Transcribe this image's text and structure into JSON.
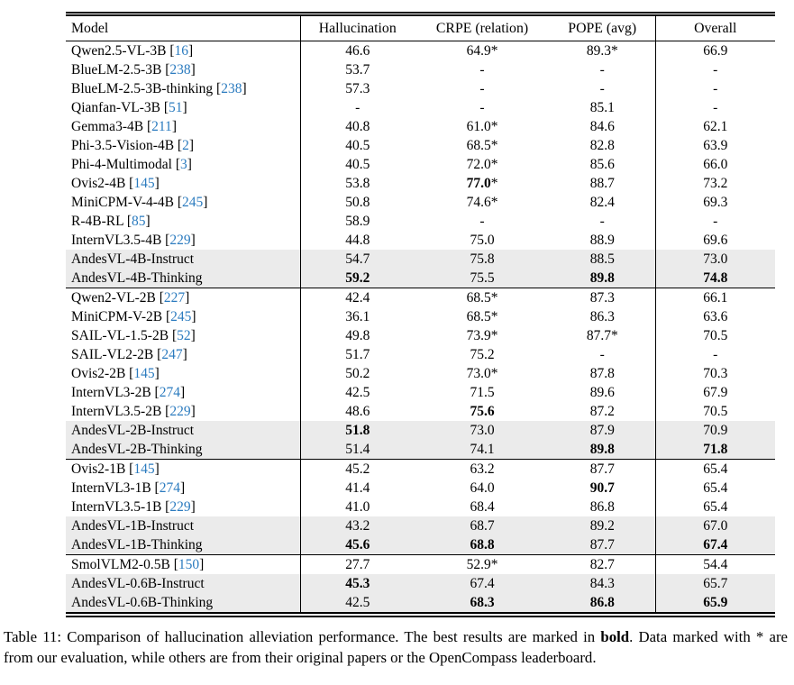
{
  "colors": {
    "citation_blue": "#2b7bbf",
    "highlight_row": "#ebebeb"
  },
  "table": {
    "columns": [
      {
        "key": "model",
        "label": "Model"
      },
      {
        "key": "hallucination",
        "label": "Hallucination"
      },
      {
        "key": "crpe",
        "label": "CRPE (relation)"
      },
      {
        "key": "pope",
        "label": "POPE (avg)"
      },
      {
        "key": "overall",
        "label": "Overall"
      }
    ],
    "groups": [
      {
        "rows": [
          {
            "model": "Qwen2.5-VL-3B",
            "cite": "16",
            "highlight": false,
            "cells": [
              {
                "v": "46.6"
              },
              {
                "v": "64.9",
                "star": true
              },
              {
                "v": "89.3",
                "star": true
              },
              {
                "v": "66.9"
              }
            ]
          },
          {
            "model": "BlueLM-2.5-3B",
            "cite": "238",
            "highlight": false,
            "cells": [
              {
                "v": "53.7"
              },
              {
                "v": "-"
              },
              {
                "v": "-"
              },
              {
                "v": "-"
              }
            ]
          },
          {
            "model": "BlueLM-2.5-3B-thinking",
            "cite": "238",
            "highlight": false,
            "cells": [
              {
                "v": "57.3"
              },
              {
                "v": "-"
              },
              {
                "v": "-"
              },
              {
                "v": "-"
              }
            ]
          },
          {
            "model": "Qianfan-VL-3B",
            "cite": "51",
            "highlight": false,
            "cells": [
              {
                "v": "-"
              },
              {
                "v": "-"
              },
              {
                "v": "85.1"
              },
              {
                "v": "-"
              }
            ]
          },
          {
            "model": "Gemma3-4B",
            "cite": "211",
            "highlight": false,
            "cells": [
              {
                "v": "40.8"
              },
              {
                "v": "61.0",
                "star": true
              },
              {
                "v": "84.6"
              },
              {
                "v": "62.1"
              }
            ]
          },
          {
            "model": "Phi-3.5-Vision-4B",
            "cite": "2",
            "highlight": false,
            "cells": [
              {
                "v": "40.5"
              },
              {
                "v": "68.5",
                "star": true
              },
              {
                "v": "82.8"
              },
              {
                "v": "63.9"
              }
            ]
          },
          {
            "model": "Phi-4-Multimodal",
            "cite": "3",
            "highlight": false,
            "cells": [
              {
                "v": "40.5"
              },
              {
                "v": "72.0",
                "star": true
              },
              {
                "v": "85.6"
              },
              {
                "v": "66.0"
              }
            ]
          },
          {
            "model": "Ovis2-4B",
            "cite": "145",
            "highlight": false,
            "cells": [
              {
                "v": "53.8"
              },
              {
                "v": "77.0",
                "star": true,
                "bold": true
              },
              {
                "v": "88.7"
              },
              {
                "v": "73.2"
              }
            ]
          },
          {
            "model": "MiniCPM-V-4-4B",
            "cite": "245",
            "highlight": false,
            "cells": [
              {
                "v": "50.8"
              },
              {
                "v": "74.6",
                "star": true
              },
              {
                "v": "82.4"
              },
              {
                "v": "69.3"
              }
            ]
          },
          {
            "model": "R-4B-RL",
            "cite": "85",
            "highlight": false,
            "cells": [
              {
                "v": "58.9"
              },
              {
                "v": "-"
              },
              {
                "v": "-"
              },
              {
                "v": "-"
              }
            ]
          },
          {
            "model": "InternVL3.5-4B",
            "cite": "229",
            "highlight": false,
            "cells": [
              {
                "v": "44.8"
              },
              {
                "v": "75.0"
              },
              {
                "v": "88.9"
              },
              {
                "v": "69.6"
              }
            ]
          },
          {
            "model": "AndesVL-4B-Instruct",
            "cite": null,
            "highlight": true,
            "cells": [
              {
                "v": "54.7"
              },
              {
                "v": "75.8"
              },
              {
                "v": "88.5"
              },
              {
                "v": "73.0"
              }
            ]
          },
          {
            "model": "AndesVL-4B-Thinking",
            "cite": null,
            "highlight": true,
            "cells": [
              {
                "v": "59.2",
                "bold": true
              },
              {
                "v": "75.5"
              },
              {
                "v": "89.8",
                "bold": true
              },
              {
                "v": "74.8",
                "bold": true
              }
            ]
          }
        ]
      },
      {
        "rows": [
          {
            "model": "Qwen2-VL-2B",
            "cite": "227",
            "highlight": false,
            "cells": [
              {
                "v": "42.4"
              },
              {
                "v": "68.5",
                "star": true
              },
              {
                "v": "87.3"
              },
              {
                "v": "66.1"
              }
            ]
          },
          {
            "model": "MiniCPM-V-2B",
            "cite": "245",
            "highlight": false,
            "cells": [
              {
                "v": "36.1"
              },
              {
                "v": "68.5",
                "star": true
              },
              {
                "v": "86.3"
              },
              {
                "v": "63.6"
              }
            ]
          },
          {
            "model": "SAIL-VL-1.5-2B",
            "cite": "52",
            "highlight": false,
            "cells": [
              {
                "v": "49.8"
              },
              {
                "v": "73.9",
                "star": true
              },
              {
                "v": "87.7",
                "star": true
              },
              {
                "v": "70.5"
              }
            ]
          },
          {
            "model": "SAIL-VL2-2B",
            "cite": "247",
            "highlight": false,
            "cells": [
              {
                "v": "51.7"
              },
              {
                "v": "75.2"
              },
              {
                "v": "-"
              },
              {
                "v": "-"
              }
            ]
          },
          {
            "model": "Ovis2-2B",
            "cite": "145",
            "highlight": false,
            "cells": [
              {
                "v": "50.2"
              },
              {
                "v": "73.0",
                "star": true
              },
              {
                "v": "87.8"
              },
              {
                "v": "70.3"
              }
            ]
          },
          {
            "model": "InternVL3-2B",
            "cite": "274",
            "highlight": false,
            "cells": [
              {
                "v": "42.5"
              },
              {
                "v": "71.5"
              },
              {
                "v": "89.6"
              },
              {
                "v": "67.9"
              }
            ]
          },
          {
            "model": "InternVL3.5-2B",
            "cite": "229",
            "highlight": false,
            "cells": [
              {
                "v": "48.6"
              },
              {
                "v": "75.6",
                "bold": true
              },
              {
                "v": "87.2"
              },
              {
                "v": "70.5"
              }
            ]
          },
          {
            "model": "AndesVL-2B-Instruct",
            "cite": null,
            "highlight": true,
            "cells": [
              {
                "v": "51.8",
                "bold": true
              },
              {
                "v": "73.0"
              },
              {
                "v": "87.9"
              },
              {
                "v": "70.9"
              }
            ]
          },
          {
            "model": "AndesVL-2B-Thinking",
            "cite": null,
            "highlight": true,
            "cells": [
              {
                "v": "51.4"
              },
              {
                "v": "74.1"
              },
              {
                "v": "89.8",
                "bold": true
              },
              {
                "v": "71.8",
                "bold": true
              }
            ]
          }
        ]
      },
      {
        "rows": [
          {
            "model": "Ovis2-1B",
            "cite": "145",
            "highlight": false,
            "cells": [
              {
                "v": "45.2"
              },
              {
                "v": "63.2"
              },
              {
                "v": "87.7"
              },
              {
                "v": "65.4"
              }
            ]
          },
          {
            "model": "InternVL3-1B",
            "cite": "274",
            "highlight": false,
            "cells": [
              {
                "v": "41.4"
              },
              {
                "v": "64.0"
              },
              {
                "v": "90.7",
                "bold": true
              },
              {
                "v": "65.4"
              }
            ]
          },
          {
            "model": "InternVL3.5-1B",
            "cite": "229",
            "highlight": false,
            "cells": [
              {
                "v": "41.0"
              },
              {
                "v": "68.4"
              },
              {
                "v": "86.8"
              },
              {
                "v": "65.4"
              }
            ]
          },
          {
            "model": "AndesVL-1B-Instruct",
            "cite": null,
            "highlight": true,
            "cells": [
              {
                "v": "43.2"
              },
              {
                "v": "68.7"
              },
              {
                "v": "89.2"
              },
              {
                "v": "67.0"
              }
            ]
          },
          {
            "model": "AndesVL-1B-Thinking",
            "cite": null,
            "highlight": true,
            "cells": [
              {
                "v": "45.6",
                "bold": true
              },
              {
                "v": "68.8",
                "bold": true
              },
              {
                "v": "87.7"
              },
              {
                "v": "67.4",
                "bold": true
              }
            ]
          }
        ]
      },
      {
        "rows": [
          {
            "model": "SmolVLM2-0.5B",
            "cite": "150",
            "highlight": false,
            "cells": [
              {
                "v": "27.7"
              },
              {
                "v": "52.9",
                "star": true
              },
              {
                "v": "82.7"
              },
              {
                "v": "54.4"
              }
            ]
          },
          {
            "model": "AndesVL-0.6B-Instruct",
            "cite": null,
            "highlight": true,
            "cells": [
              {
                "v": "45.3",
                "bold": true
              },
              {
                "v": "67.4"
              },
              {
                "v": "84.3"
              },
              {
                "v": "65.7"
              }
            ]
          },
          {
            "model": "AndesVL-0.6B-Thinking",
            "cite": null,
            "highlight": true,
            "cells": [
              {
                "v": "42.5"
              },
              {
                "v": "68.3",
                "bold": true
              },
              {
                "v": "86.8",
                "bold": true
              },
              {
                "v": "65.9",
                "bold": true
              }
            ]
          }
        ]
      }
    ]
  },
  "caption": {
    "before_bold": "Table 11: Comparison of hallucination alleviation performance. The best results are marked in ",
    "bold_word": "bold",
    "after_bold": ". Data marked with * are from our evaluation, while others are from their original papers or the OpenCompass leaderboard."
  }
}
